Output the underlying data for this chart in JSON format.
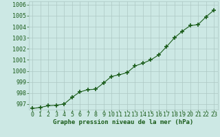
{
  "x": [
    0,
    1,
    2,
    3,
    4,
    5,
    6,
    7,
    8,
    9,
    10,
    11,
    12,
    13,
    14,
    15,
    16,
    17,
    18,
    19,
    20,
    21,
    22,
    23
  ],
  "y": [
    996.6,
    996.7,
    996.85,
    996.9,
    997.0,
    997.6,
    998.1,
    998.3,
    998.35,
    998.9,
    999.5,
    999.65,
    999.85,
    1000.45,
    1000.7,
    1001.0,
    1001.45,
    1002.2,
    1003.0,
    1003.6,
    1004.1,
    1004.2,
    1004.9,
    1005.5
  ],
  "line_color": "#1a5c1a",
  "marker_color": "#1a5c1a",
  "bg_color": "#cce8e4",
  "grid_color": "#adc8c4",
  "label_color": "#1a5c1a",
  "title": "Graphe pression niveau de la mer (hPa)",
  "ylim": [
    996.5,
    1006.3
  ],
  "xlim": [
    -0.5,
    23.5
  ],
  "yticks": [
    997,
    998,
    999,
    1000,
    1001,
    1002,
    1003,
    1004,
    1005,
    1006
  ],
  "xticks": [
    0,
    1,
    2,
    3,
    4,
    5,
    6,
    7,
    8,
    9,
    10,
    11,
    12,
    13,
    14,
    15,
    16,
    17,
    18,
    19,
    20,
    21,
    22,
    23
  ],
  "tick_fontsize": 6,
  "title_fontsize": 6.5
}
